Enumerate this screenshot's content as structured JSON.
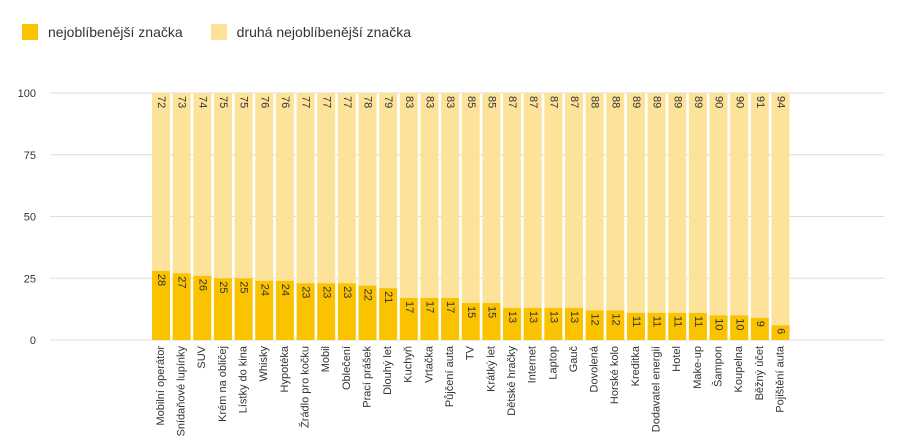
{
  "legend": {
    "primary_label": "nejoblíbenější značka",
    "secondary_label": "druhá nejoblíbenější značka"
  },
  "colors": {
    "primary": "#FBC200",
    "secondary": "#FDE39A",
    "gridline": "#DDDDDD",
    "axis_text": "#333333",
    "value_text": "#333333"
  },
  "chart_data": {
    "type": "bar",
    "stacked": true,
    "ylim": [
      0,
      100
    ],
    "yticks": [
      0,
      25,
      50,
      75,
      100
    ],
    "grid": true,
    "legend_position": "top-left",
    "categories": [
      "Mobilní operátor",
      "Snídaňové lupínky",
      "SUV",
      "Krém na obličej",
      "Lístky do kina",
      "Whisky",
      "Hypotéka",
      "Žrádlo pro kočku",
      "Mobil",
      "Oblečení",
      "Prací prášek",
      "Dlouhý let",
      "Kuchyň",
      "Vrtačka",
      "Půjčení auta",
      "TV",
      "Krátký let",
      "Dětské hračky",
      "Internet",
      "Laptop",
      "Gauč",
      "Dovolená",
      "Horské kolo",
      "Kreditka",
      "Dodavatel energií",
      "Hotel",
      "Make-up",
      "Šampon",
      "Koupelna",
      "Běžný účet",
      "Pojištění auta"
    ],
    "series": [
      {
        "name": "nejoblíbenější značka",
        "values": [
          28,
          27,
          26,
          25,
          25,
          24,
          24,
          23,
          23,
          23,
          22,
          21,
          17,
          17,
          17,
          15,
          15,
          13,
          13,
          13,
          13,
          12,
          12,
          11,
          11,
          11,
          11,
          10,
          10,
          9,
          6
        ]
      },
      {
        "name": "druhá nejoblíbenější značka",
        "values": [
          72,
          73,
          74,
          75,
          75,
          76,
          76,
          77,
          77,
          77,
          78,
          79,
          83,
          83,
          83,
          85,
          85,
          87,
          87,
          87,
          87,
          88,
          88,
          89,
          89,
          89,
          89,
          90,
          90,
          91,
          94
        ]
      }
    ]
  }
}
